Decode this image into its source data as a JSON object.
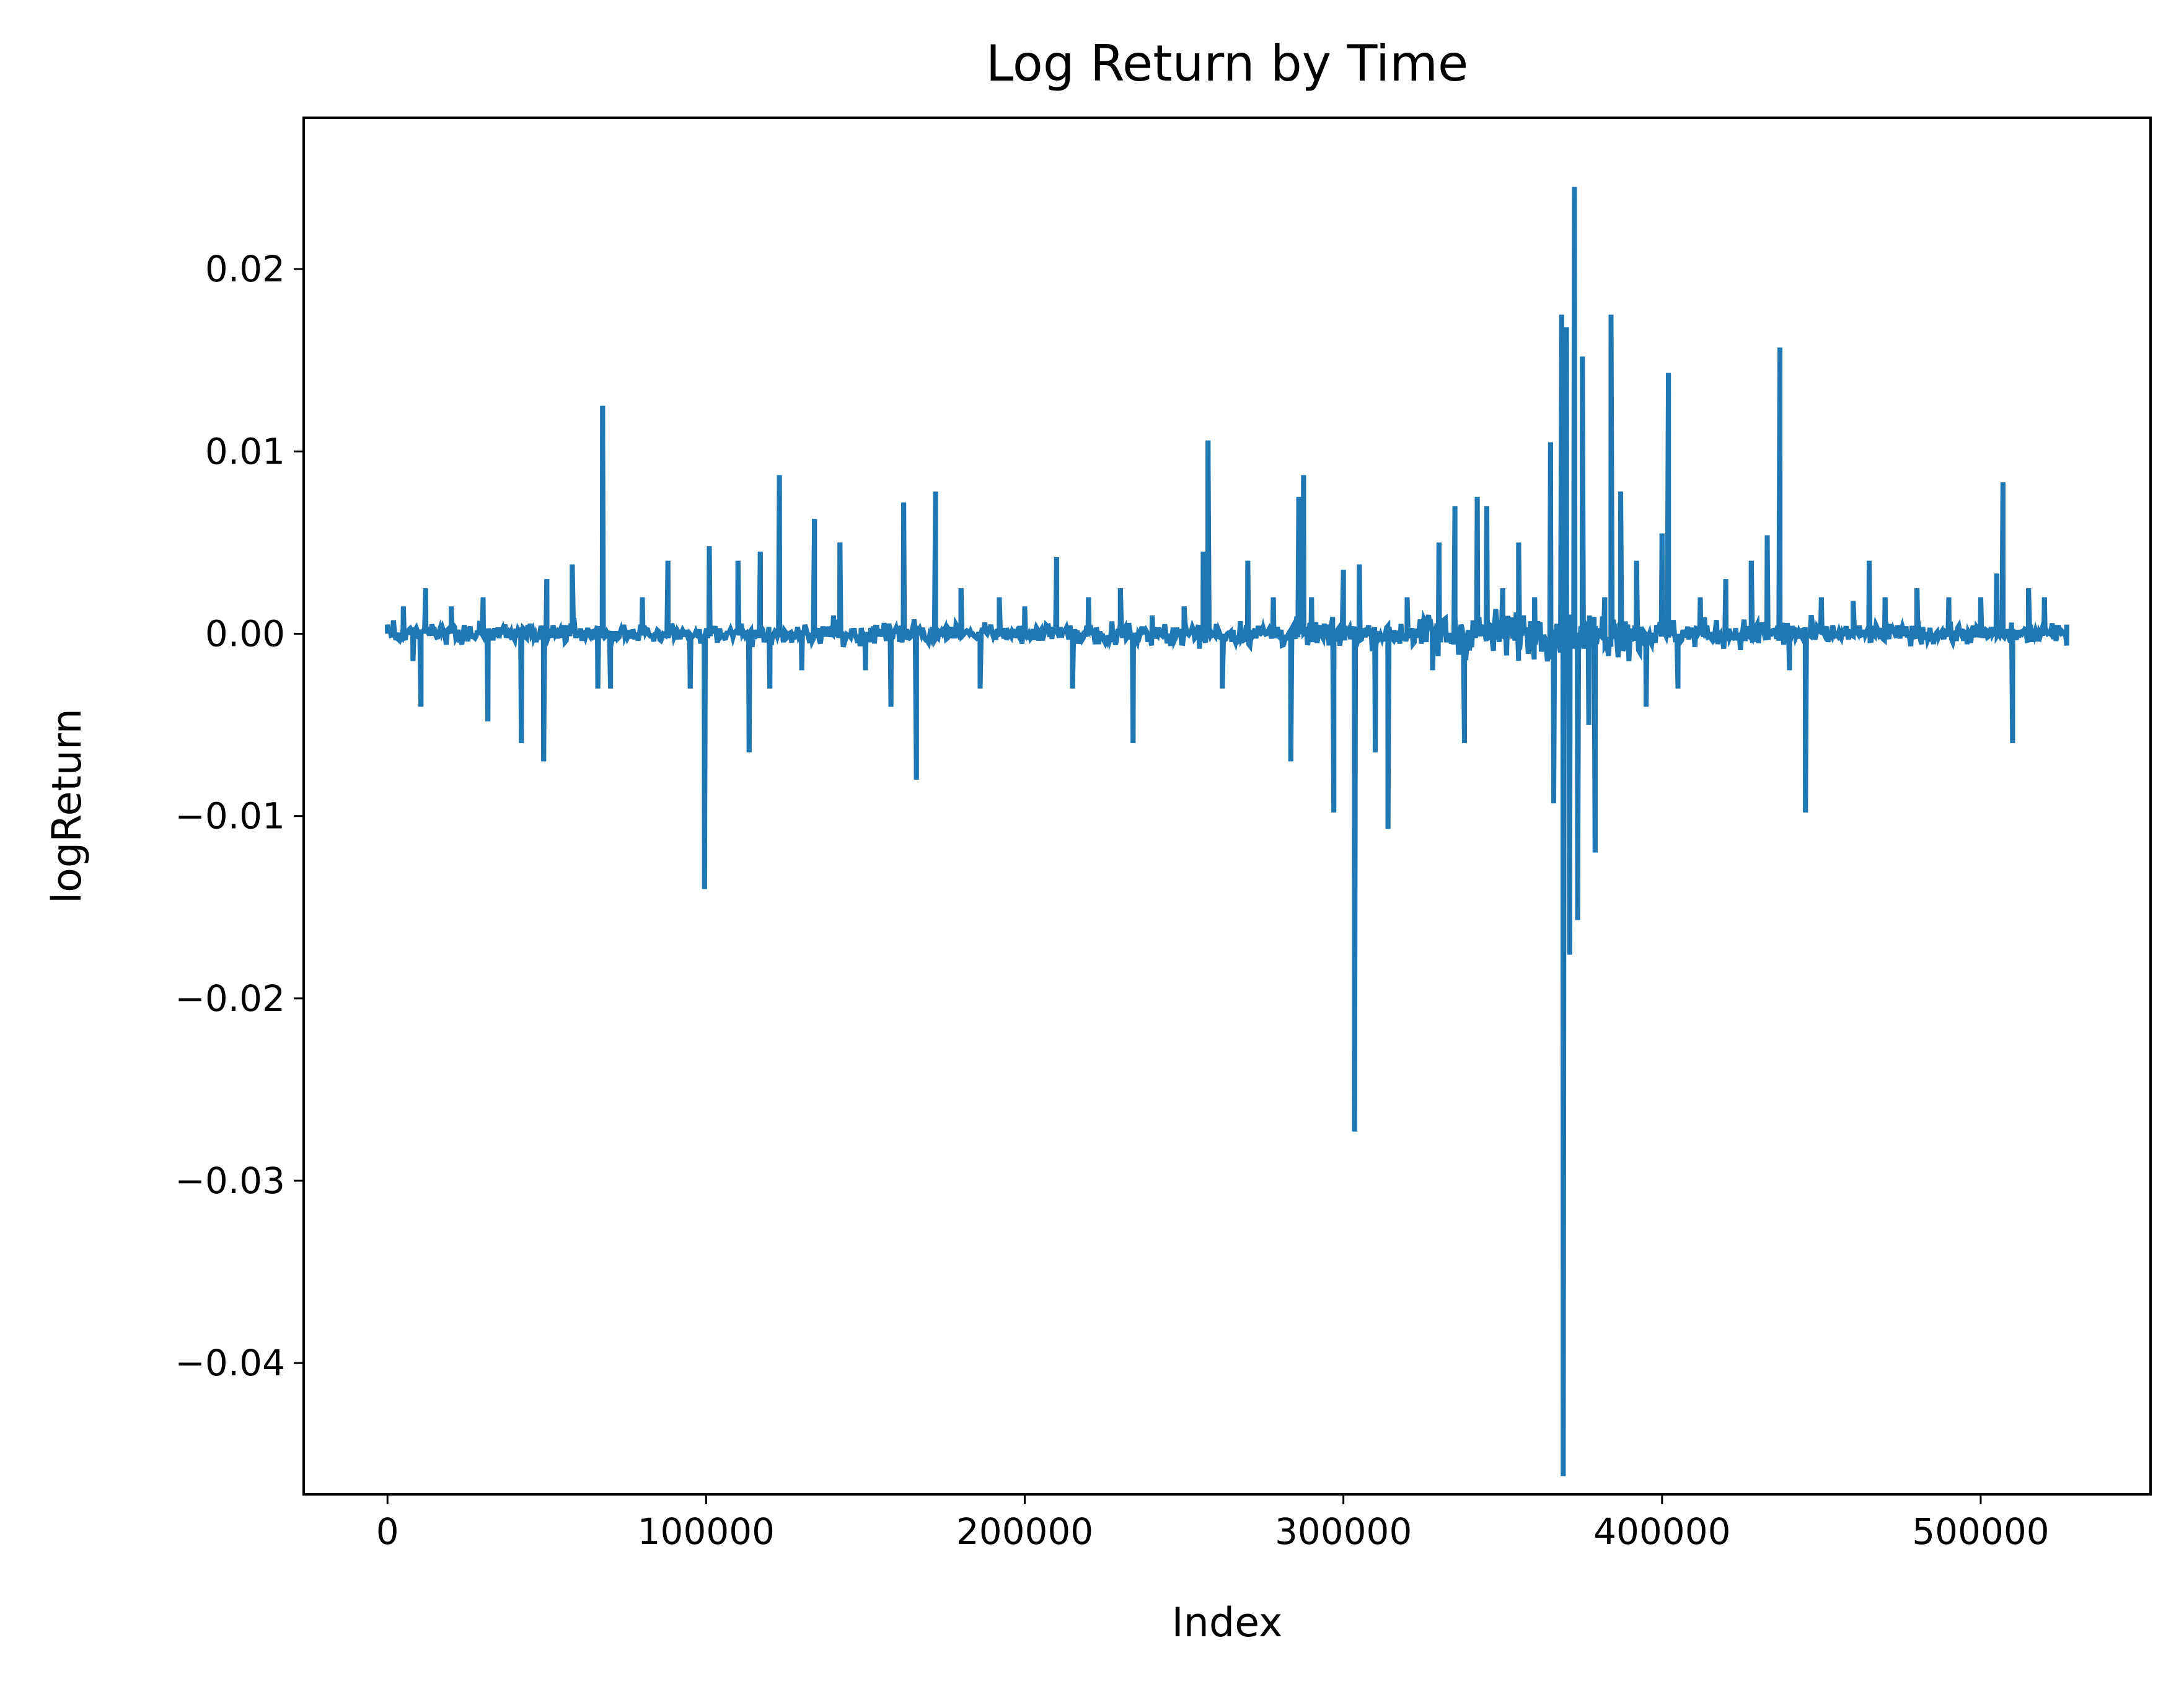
{
  "chart_data": {
    "type": "line",
    "title": "Log Return by Time",
    "xlabel": "Index",
    "ylabel": "logReturn",
    "xlim": [
      -26300,
      553300
    ],
    "ylim": [
      -0.0472,
      0.0283
    ],
    "xticks": [
      0,
      100000,
      200000,
      300000,
      400000,
      500000
    ],
    "xtick_labels": [
      "0",
      "100000",
      "200000",
      "300000",
      "400000",
      "500000"
    ],
    "yticks": [
      -0.04,
      -0.03,
      -0.02,
      -0.01,
      0.0,
      0.01,
      0.02
    ],
    "ytick_labels": [
      "−0.04",
      "−0.03",
      "−0.02",
      "−0.01",
      "0.00",
      "0.01",
      "0.02"
    ],
    "grid": false,
    "legend": "none",
    "series": [
      {
        "color": "#1f77b4",
        "points": [
          [
            0,
            0.0005
          ],
          [
            5000,
            0.0015
          ],
          [
            8000,
            -0.0015
          ],
          [
            10500,
            -0.004
          ],
          [
            12000,
            0.0025
          ],
          [
            20000,
            0.0015
          ],
          [
            30000,
            0.002
          ],
          [
            31500,
            -0.0048
          ],
          [
            42000,
            -0.006
          ],
          [
            49000,
            -0.007
          ],
          [
            50000,
            0.003
          ],
          [
            58000,
            0.0038
          ],
          [
            66000,
            -0.003
          ],
          [
            67500,
            0.0125
          ],
          [
            70000,
            -0.003
          ],
          [
            80000,
            0.002
          ],
          [
            88000,
            0.004
          ],
          [
            95000,
            -0.003
          ],
          [
            99500,
            -0.014
          ],
          [
            101000,
            0.0048
          ],
          [
            110000,
            0.004
          ],
          [
            113500,
            -0.0065
          ],
          [
            117000,
            0.0045
          ],
          [
            120000,
            -0.003
          ],
          [
            123000,
            0.0087
          ],
          [
            130000,
            -0.002
          ],
          [
            134000,
            0.0063
          ],
          [
            140000,
            0.001
          ],
          [
            142000,
            0.005
          ],
          [
            150000,
            -0.002
          ],
          [
            158000,
            -0.004
          ],
          [
            162000,
            0.0072
          ],
          [
            166000,
            -0.008
          ],
          [
            172000,
            0.0078
          ],
          [
            180000,
            0.0025
          ],
          [
            186000,
            -0.003
          ],
          [
            192000,
            0.002
          ],
          [
            200000,
            0.0015
          ],
          [
            210000,
            0.0042
          ],
          [
            215000,
            -0.003
          ],
          [
            220000,
            0.002
          ],
          [
            230000,
            0.0025
          ],
          [
            234000,
            -0.006
          ],
          [
            240000,
            0.001
          ],
          [
            250000,
            0.0015
          ],
          [
            256000,
            0.0045
          ],
          [
            257500,
            0.0106
          ],
          [
            262000,
            -0.003
          ],
          [
            270000,
            0.004
          ],
          [
            278000,
            0.002
          ],
          [
            283500,
            -0.007
          ],
          [
            286000,
            0.0075
          ],
          [
            287500,
            0.0087
          ],
          [
            290000,
            0.002
          ],
          [
            297000,
            -0.0098
          ],
          [
            300000,
            0.0035
          ],
          [
            303500,
            -0.0273
          ],
          [
            305000,
            0.0038
          ],
          [
            310000,
            -0.0065
          ],
          [
            314000,
            -0.0107
          ],
          [
            320000,
            0.002
          ],
          [
            328000,
            -0.002
          ],
          [
            330000,
            0.005
          ],
          [
            335000,
            0.007
          ],
          [
            338000,
            -0.006
          ],
          [
            342000,
            0.0075
          ],
          [
            345000,
            0.007
          ],
          [
            350000,
            0.0025
          ],
          [
            355000,
            0.005
          ],
          [
            360000,
            0.002
          ],
          [
            365000,
            0.0105
          ],
          [
            366000,
            -0.0093
          ],
          [
            368500,
            0.0175
          ],
          [
            369000,
            -0.0462
          ],
          [
            370000,
            0.0168
          ],
          [
            371000,
            -0.0176
          ],
          [
            372500,
            0.0245
          ],
          [
            373500,
            -0.0157
          ],
          [
            375000,
            0.0152
          ],
          [
            377000,
            -0.005
          ],
          [
            379000,
            -0.012
          ],
          [
            382000,
            0.002
          ],
          [
            384000,
            0.0175
          ],
          [
            387000,
            0.0078
          ],
          [
            392000,
            0.004
          ],
          [
            395000,
            -0.004
          ],
          [
            400000,
            0.0055
          ],
          [
            402000,
            0.0143
          ],
          [
            405000,
            -0.003
          ],
          [
            412000,
            0.002
          ],
          [
            420000,
            0.003
          ],
          [
            428000,
            0.004
          ],
          [
            433000,
            0.0054
          ],
          [
            437000,
            0.0157
          ],
          [
            440000,
            -0.002
          ],
          [
            445000,
            -0.0098
          ],
          [
            450000,
            0.002
          ],
          [
            460000,
            0.0018
          ],
          [
            465000,
            0.004
          ],
          [
            470000,
            0.002
          ],
          [
            480000,
            0.0025
          ],
          [
            490000,
            0.002
          ],
          [
            500000,
            0.002
          ],
          [
            505000,
            0.0033
          ],
          [
            507000,
            0.0083
          ],
          [
            510000,
            -0.006
          ],
          [
            515000,
            0.0025
          ],
          [
            520000,
            0.002
          ],
          [
            527000,
            0.0005
          ]
        ]
      }
    ]
  }
}
